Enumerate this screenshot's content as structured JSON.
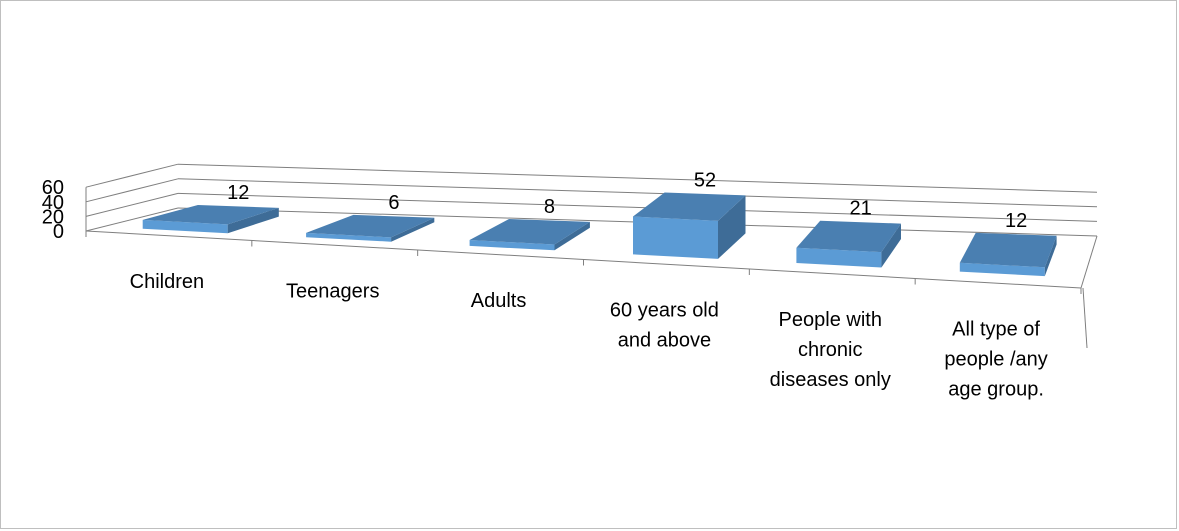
{
  "chart_data": {
    "type": "bar",
    "title": "",
    "xlabel": "",
    "ylabel": "",
    "ylim": [
      0,
      60
    ],
    "yticks": [
      "0",
      "20",
      "40",
      "60"
    ],
    "grid": true,
    "legend": "none",
    "categories": [
      [
        "Children"
      ],
      [
        "Teenagers"
      ],
      [
        "Adults"
      ],
      [
        "60 years old",
        "and above"
      ],
      [
        "People with",
        "chronic",
        "diseases only"
      ],
      [
        "All type of",
        "people /any",
        "age group."
      ]
    ],
    "values": [
      12,
      6,
      8,
      52,
      21,
      12
    ],
    "data_labels": [
      "12",
      "6",
      "8",
      "52",
      "21",
      "12"
    ],
    "colors": {
      "bar_front": "#5b9bd5",
      "bar_top": "#4a7fb1",
      "bar_side": "#3e6c97",
      "gridline": "#7f7f7f",
      "frame": "#bfbfbf"
    }
  }
}
